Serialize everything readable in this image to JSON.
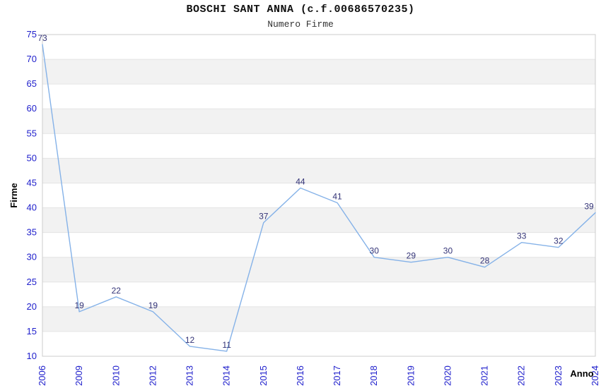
{
  "chart_data": {
    "type": "line",
    "title": "BOSCHI SANT ANNA (c.f.00686570235)",
    "subtitle": "Numero Firme",
    "xlabel": "Anno",
    "ylabel": "Firme",
    "categories": [
      "2006",
      "2009",
      "2010",
      "2012",
      "2013",
      "2014",
      "2015",
      "2016",
      "2017",
      "2018",
      "2019",
      "2020",
      "2021",
      "2022",
      "2023",
      "2024"
    ],
    "values": [
      73,
      19,
      22,
      19,
      12,
      11,
      37,
      44,
      41,
      30,
      29,
      30,
      28,
      33,
      32,
      39
    ],
    "ylim": [
      10,
      75
    ],
    "ytick_step": 5,
    "legend": "none",
    "grid": "horizontal-bands-alternating",
    "x_tick_rotation": -90,
    "data_labels_shown": true,
    "colors": {
      "line": "#85b2e8",
      "tick_label": "#2020cc",
      "data_label": "#333377",
      "band": "#f2f2f2",
      "gridline": "#e4e4e4",
      "plot_border": "#cccccc",
      "axis_title": "#000000",
      "background": "#ffffff"
    }
  }
}
